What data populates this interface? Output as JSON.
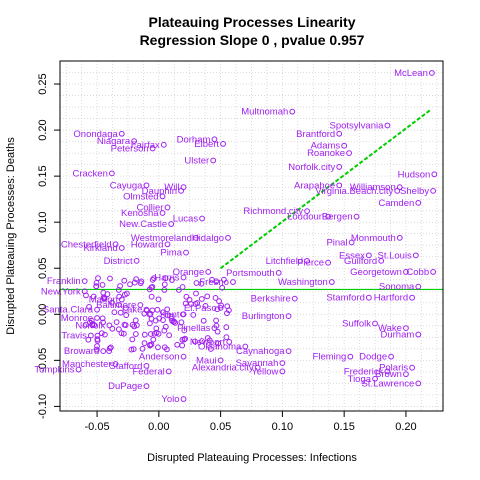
{
  "chart_data": {
    "type": "scatter",
    "title": "Plateauing Processes Linearity",
    "subtitle": "Regression Slope 0 , pvalue 0.957",
    "xlabel": "Disrupted Plateauing Processes: Infections",
    "ylabel": "Disrupted Plateauing Processes: Deaths",
    "xlim": [
      -0.08,
      0.23
    ],
    "ylim": [
      -0.105,
      0.275
    ],
    "xticks": [
      -0.05,
      0.0,
      0.05,
      0.1,
      0.15,
      0.2
    ],
    "xtick_labels": [
      "-0.05",
      "0.00",
      "0.05",
      "0.10",
      "0.15",
      "0.20"
    ],
    "yticks": [
      -0.1,
      -0.05,
      0.0,
      0.05,
      0.1,
      0.15,
      0.2,
      0.25
    ],
    "ytick_labels": [
      "-0.10",
      "-0.05",
      "0.00",
      "0.05",
      "0.10",
      "0.15",
      "0.20",
      "0.25"
    ],
    "grid": true,
    "point_color": "#a020f0",
    "line_color": "#00cd00",
    "horizontal_line_y": 0.027,
    "regression_line": {
      "x": [
        0.05,
        0.22
      ],
      "y": [
        0.05,
        0.222
      ]
    },
    "points": [
      {
        "label": "McLean",
        "x": 0.221,
        "y": 0.262
      },
      {
        "label": "Multnomah",
        "x": 0.108,
        "y": 0.22
      },
      {
        "label": "Onondaga",
        "x": -0.03,
        "y": 0.196
      },
      {
        "label": "Niagara",
        "x": -0.02,
        "y": 0.188
      },
      {
        "label": "Peterson",
        "x": -0.005,
        "y": 0.18
      },
      {
        "label": "Fairfax",
        "x": 0.004,
        "y": 0.184
      },
      {
        "label": "Dorham",
        "x": 0.045,
        "y": 0.19
      },
      {
        "label": "Elbert",
        "x": 0.052,
        "y": 0.185
      },
      {
        "label": "Ulster",
        "x": 0.044,
        "y": 0.167
      },
      {
        "label": "Spotsylvania",
        "x": 0.185,
        "y": 0.205
      },
      {
        "label": "Brantford",
        "x": 0.146,
        "y": 0.196
      },
      {
        "label": "Adams",
        "x": 0.15,
        "y": 0.183
      },
      {
        "label": "Roanoke",
        "x": 0.154,
        "y": 0.175
      },
      {
        "label": "Norfolk.city",
        "x": 0.146,
        "y": 0.16
      },
      {
        "label": "Cracken",
        "x": -0.038,
        "y": 0.153
      },
      {
        "label": "Cayuga",
        "x": -0.01,
        "y": 0.14
      },
      {
        "label": "Will",
        "x": 0.02,
        "y": 0.138
      },
      {
        "label": "Dauphin",
        "x": 0.018,
        "y": 0.134
      },
      {
        "label": "Olmsted",
        "x": 0.003,
        "y": 0.128
      },
      {
        "label": "Arapahoe",
        "x": 0.146,
        "y": 0.14
      },
      {
        "label": "Williamson",
        "x": 0.195,
        "y": 0.138
      },
      {
        "label": "Hudson",
        "x": 0.223,
        "y": 0.152
      },
      {
        "label": "Virginia.Beach.city",
        "x": 0.193,
        "y": 0.134
      },
      {
        "label": "Shelby",
        "x": 0.222,
        "y": 0.134
      },
      {
        "label": "Camden",
        "x": 0.21,
        "y": 0.121
      },
      {
        "label": "Collier",
        "x": 0.007,
        "y": 0.116
      },
      {
        "label": "Kenosha",
        "x": 0.003,
        "y": 0.11
      },
      {
        "label": "Lucas",
        "x": 0.035,
        "y": 0.104
      },
      {
        "label": "New.Castle",
        "x": 0.01,
        "y": 0.098
      },
      {
        "label": "Richmond.city",
        "x": 0.12,
        "y": 0.112
      },
      {
        "label": "Loudoun",
        "x": 0.137,
        "y": 0.106
      },
      {
        "label": "Bergen",
        "x": 0.16,
        "y": 0.106
      },
      {
        "label": "Westmoreland",
        "x": 0.03,
        "y": 0.083
      },
      {
        "label": "Hidalgo",
        "x": 0.056,
        "y": 0.083
      },
      {
        "label": "Monmouth",
        "x": 0.195,
        "y": 0.083
      },
      {
        "label": "Pinal",
        "x": 0.156,
        "y": 0.078
      },
      {
        "label": "Chesterfield",
        "x": -0.035,
        "y": 0.076
      },
      {
        "label": "Howard",
        "x": 0.007,
        "y": 0.076
      },
      {
        "label": "Kirkland",
        "x": -0.03,
        "y": 0.072
      },
      {
        "label": "Pima",
        "x": 0.022,
        "y": 0.067
      },
      {
        "label": "District",
        "x": -0.018,
        "y": 0.058
      },
      {
        "label": "Essex",
        "x": 0.17,
        "y": 0.064
      },
      {
        "label": "St.Louis",
        "x": 0.208,
        "y": 0.064
      },
      {
        "label": "Litchfield",
        "x": 0.12,
        "y": 0.058
      },
      {
        "label": "Pierce",
        "x": 0.137,
        "y": 0.056
      },
      {
        "label": "Guilford",
        "x": 0.18,
        "y": 0.058
      },
      {
        "label": "Georgetown",
        "x": 0.2,
        "y": 0.046
      },
      {
        "label": "Cobb",
        "x": 0.222,
        "y": 0.046
      },
      {
        "label": "Portsmouth",
        "x": 0.097,
        "y": 0.045
      },
      {
        "label": "Washington",
        "x": 0.14,
        "y": 0.035
      },
      {
        "label": "Franklin",
        "x": -0.06,
        "y": 0.036
      },
      {
        "label": "New.York",
        "x": -0.06,
        "y": 0.025
      },
      {
        "label": "Orange",
        "x": 0.04,
        "y": 0.046
      },
      {
        "label": "Sonoma",
        "x": 0.21,
        "y": 0.03
      },
      {
        "label": "Fresno",
        "x": 0.06,
        "y": 0.035
      },
      {
        "label": "Harris",
        "x": 0.02,
        "y": 0.04
      },
      {
        "label": "Berkshire",
        "x": 0.11,
        "y": 0.017
      },
      {
        "label": "Stamford",
        "x": 0.17,
        "y": 0.018
      },
      {
        "label": "Hartford",
        "x": 0.205,
        "y": 0.018
      },
      {
        "label": "Marion",
        "x": -0.03,
        "y": 0.016
      },
      {
        "label": "Baltimore",
        "x": -0.015,
        "y": 0.01
      },
      {
        "label": "El.Paso",
        "x": 0.05,
        "y": 0.007
      },
      {
        "label": "Lake",
        "x": -0.01,
        "y": 0.005
      },
      {
        "label": "Santa.Clara",
        "x": -0.05,
        "y": 0.005
      },
      {
        "label": "Kent",
        "x": 0.02,
        "y": 0.0
      },
      {
        "label": "Burlington",
        "x": 0.105,
        "y": -0.002
      },
      {
        "label": "Pinellas",
        "x": 0.045,
        "y": -0.015
      },
      {
        "label": "Monroe",
        "x": -0.05,
        "y": -0.004
      },
      {
        "label": "Norfolk",
        "x": -0.04,
        "y": -0.012
      },
      {
        "label": "Suffolk",
        "x": 0.175,
        "y": -0.01
      },
      {
        "label": "Wake",
        "x": 0.2,
        "y": -0.015
      },
      {
        "label": "Durham",
        "x": 0.21,
        "y": -0.022
      },
      {
        "label": "Oklahoma",
        "x": 0.07,
        "y": -0.035
      },
      {
        "label": "Newport",
        "x": 0.057,
        "y": -0.03
      },
      {
        "label": "Caynahoga",
        "x": 0.105,
        "y": -0.04
      },
      {
        "label": "Anderson",
        "x": 0.02,
        "y": -0.046
      },
      {
        "label": "Travis",
        "x": -0.055,
        "y": -0.023
      },
      {
        "label": "Broward",
        "x": -0.045,
        "y": -0.04
      },
      {
        "label": "Savannah",
        "x": 0.1,
        "y": -0.053
      },
      {
        "label": "Fleming",
        "x": 0.155,
        "y": -0.046
      },
      {
        "label": "Dodge",
        "x": 0.188,
        "y": -0.046
      },
      {
        "label": "Maui",
        "x": 0.05,
        "y": -0.05
      },
      {
        "label": "Alexandria.city",
        "x": 0.08,
        "y": -0.058
      },
      {
        "label": "Yellow",
        "x": 0.1,
        "y": -0.062
      },
      {
        "label": "Manchester",
        "x": -0.035,
        "y": -0.054
      },
      {
        "label": "Stafford",
        "x": -0.01,
        "y": -0.056
      },
      {
        "label": "Federal",
        "x": 0.008,
        "y": -0.062
      },
      {
        "label": "Frederick",
        "x": 0.185,
        "y": -0.062
      },
      {
        "label": "Brown",
        "x": 0.2,
        "y": -0.065
      },
      {
        "label": "Polaris",
        "x": 0.205,
        "y": -0.058
      },
      {
        "label": "Tioga",
        "x": 0.175,
        "y": -0.07
      },
      {
        "label": "Tompkins",
        "x": -0.065,
        "y": -0.06
      },
      {
        "label": "St.Lawrence",
        "x": 0.21,
        "y": -0.075
      },
      {
        "label": "DuPage",
        "x": -0.01,
        "y": -0.078
      },
      {
        "label": "Yolo",
        "x": 0.02,
        "y": -0.092
      }
    ]
  }
}
